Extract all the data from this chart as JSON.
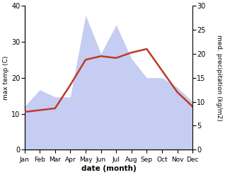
{
  "months": [
    "Jan",
    "Feb",
    "Mar",
    "Apr",
    "May",
    "Jun",
    "Jul",
    "Aug",
    "Sep",
    "Oct",
    "Nov",
    "Dec"
  ],
  "x": [
    0,
    1,
    2,
    3,
    4,
    5,
    6,
    7,
    8,
    9,
    10,
    11
  ],
  "temperature": [
    10.5,
    11.0,
    11.5,
    18.0,
    25.0,
    26.0,
    25.5,
    27.0,
    28.0,
    22.0,
    16.0,
    12.0
  ],
  "precipitation": [
    9.0,
    12.5,
    11.0,
    11.0,
    28.0,
    20.0,
    26.0,
    19.0,
    15.0,
    15.0,
    13.0,
    10.0
  ],
  "temp_color": "#c0392b",
  "precip_fill_color": "#c5cdf2",
  "temp_ylim": [
    0,
    40
  ],
  "precip_ylim": [
    0,
    30
  ],
  "temp_yticks": [
    0,
    10,
    20,
    30,
    40
  ],
  "precip_yticks": [
    0,
    5,
    10,
    15,
    20,
    25,
    30
  ],
  "xlabel": "date (month)",
  "ylabel_left": "max temp (C)",
  "ylabel_right": "med. precipitation (kg/m2)",
  "figsize": [
    3.18,
    2.47
  ],
  "dpi": 100
}
